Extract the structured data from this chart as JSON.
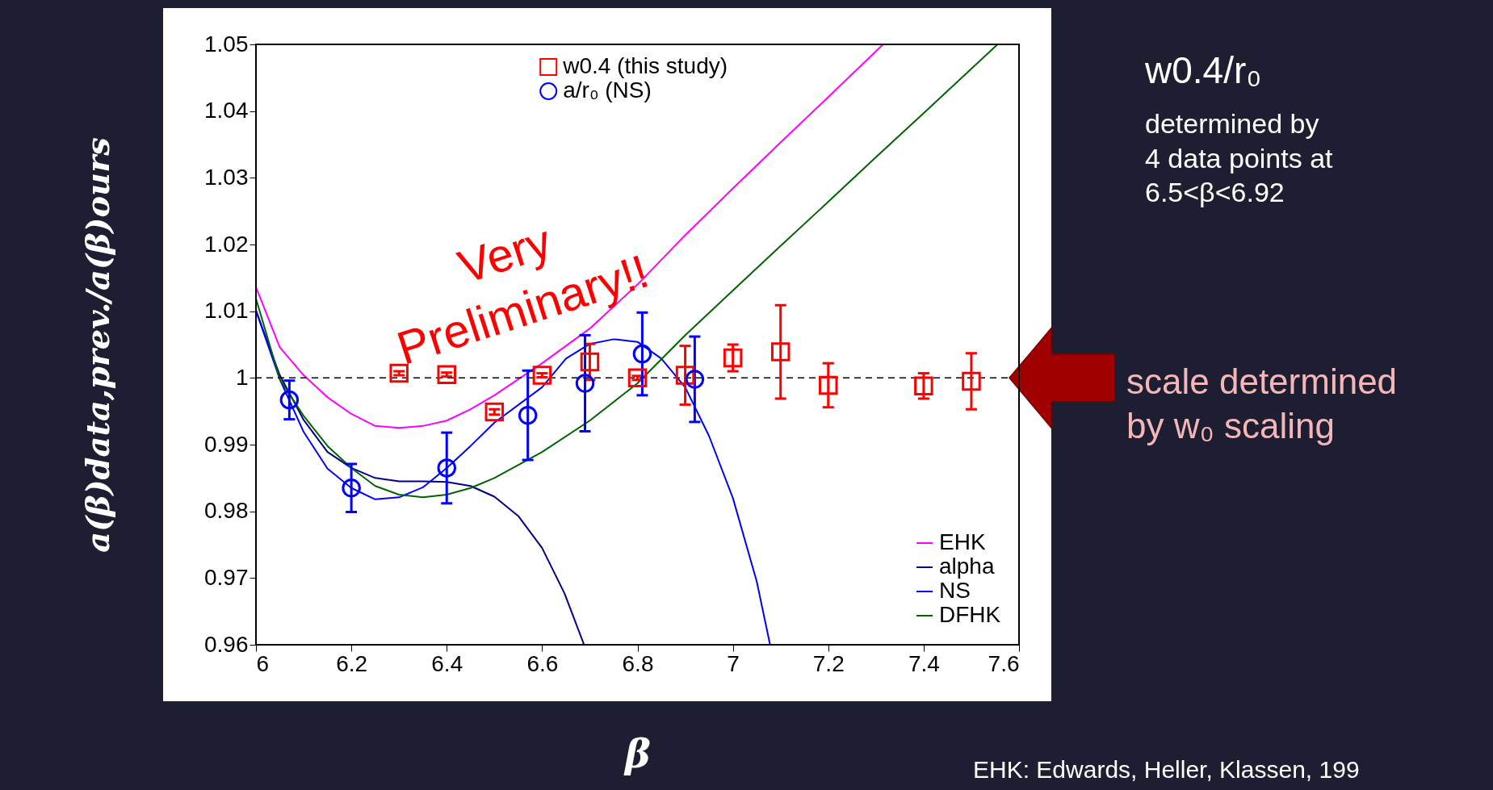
{
  "chart_data": {
    "type": "line",
    "xlabel": "β",
    "ylabel": "a(β)data,prev./a(β)ours",
    "xlim": [
      6,
      7.6
    ],
    "xticks": [
      6,
      6.2,
      6.4,
      6.6,
      6.8,
      7,
      7.2,
      7.4,
      7.6
    ],
    "ylim": [
      0.96,
      1.05
    ],
    "yticks": [
      0.96,
      0.97,
      0.98,
      0.99,
      1,
      1.01,
      1.02,
      1.03,
      1.04,
      1.05
    ],
    "grid": false,
    "legend": "top right",
    "ref_lines": [
      {
        "axis": "y",
        "value": 1,
        "color": "#000000",
        "line_style": "dashed"
      }
    ],
    "annotations": [
      "Very\nPreliminary!!",
      "w0.4/r₀",
      "determined by\n4 data points at\n6.5<β<6.92",
      "scale determined\nby w₀ scaling",
      "EHK: Edwards, Heller, Klassen, 199"
    ],
    "series": [
      {
        "name": "EHK",
        "type": "line",
        "color": "#ff00ff",
        "x": [
          6.0,
          6.05,
          6.1,
          6.15,
          6.2,
          6.25,
          6.3,
          6.35,
          6.4,
          6.45,
          6.5,
          6.6,
          6.7,
          6.8,
          6.9,
          7.0,
          7.1,
          7.2,
          7.315
        ],
        "values": [
          1.0136,
          1.0046,
          1.0004,
          0.9971,
          0.9946,
          0.9928,
          0.9925,
          0.9928,
          0.9936,
          0.9953,
          0.9974,
          1.0022,
          1.0074,
          1.014,
          1.0214,
          1.0284,
          1.0353,
          1.0421,
          1.05
        ]
      },
      {
        "name": "alpha",
        "type": "line",
        "color": "#000080",
        "x": [
          6.0,
          6.05,
          6.1,
          6.15,
          6.2,
          6.25,
          6.3,
          6.35,
          6.4,
          6.45,
          6.5,
          6.55,
          6.6,
          6.647,
          6.688
        ],
        "values": [
          1.0101,
          1.0004,
          0.9937,
          0.9889,
          0.9865,
          0.985,
          0.9845,
          0.9845,
          0.9844,
          0.9838,
          0.9822,
          0.9793,
          0.9745,
          0.9677,
          0.96
        ]
      },
      {
        "name": "NS",
        "type": "line",
        "color": "#0000ff",
        "x": [
          6.0,
          6.05,
          6.1,
          6.15,
          6.2,
          6.25,
          6.3,
          6.35,
          6.4,
          6.45,
          6.5,
          6.6,
          6.65,
          6.7,
          6.75,
          6.8,
          6.85,
          6.9,
          6.95,
          7.0,
          7.05,
          7.078
        ],
        "values": [
          1.0101,
          0.9998,
          0.9919,
          0.9864,
          0.9835,
          0.9818,
          0.9821,
          0.9836,
          0.9865,
          0.9898,
          0.9933,
          0.9986,
          1.0029,
          1.0051,
          1.0058,
          1.0054,
          1.0029,
          0.9986,
          0.9913,
          0.982,
          0.9695,
          0.96
        ]
      },
      {
        "name": "DFHK",
        "type": "line",
        "color": "#006400",
        "x": [
          6.0,
          6.05,
          6.1,
          6.15,
          6.2,
          6.25,
          6.3,
          6.35,
          6.4,
          6.45,
          6.5,
          6.6,
          6.7,
          6.8,
          6.9,
          7.0,
          7.1,
          7.2,
          7.3,
          7.4,
          7.555
        ],
        "values": [
          1.0119,
          0.9998,
          0.9943,
          0.9898,
          0.9865,
          0.9838,
          0.9825,
          0.9821,
          0.9825,
          0.9835,
          0.985,
          0.9889,
          0.9936,
          0.9992,
          1.0064,
          1.0131,
          1.0198,
          1.0264,
          1.0331,
          1.0397,
          1.05
        ]
      },
      {
        "name": "w0.4 (this study)",
        "type": "scatter",
        "marker": "square",
        "color": "#ff0000",
        "x": [
          6.3,
          6.4,
          6.5,
          6.6,
          6.7,
          6.8,
          6.9,
          7.0,
          7.1,
          7.2,
          7.4,
          7.5
        ],
        "values": [
          1.0007,
          1.0005,
          0.9949,
          1.0004,
          1.0024,
          1.0,
          1.0004,
          1.003,
          1.0039,
          0.9989,
          0.9988,
          0.9995
        ],
        "errors": [
          0.0003,
          0.0003,
          0.0004,
          0.0003,
          0.0027,
          0.0003,
          0.0044,
          0.002,
          0.007,
          0.0033,
          0.0019,
          0.0042
        ]
      },
      {
        "name": "a/r₀ (NS)",
        "type": "scatter",
        "marker": "circle",
        "color": "#0000ff",
        "x": [
          6.07,
          6.2,
          6.4,
          6.57,
          6.69,
          6.81,
          6.92
        ],
        "values": [
          0.9967,
          0.9835,
          0.9865,
          0.9944,
          0.9992,
          1.0036,
          0.9998
        ],
        "errors": [
          0.0029,
          0.0036,
          0.0053,
          0.0067,
          0.0072,
          0.0062,
          0.0064
        ]
      }
    ]
  }
}
